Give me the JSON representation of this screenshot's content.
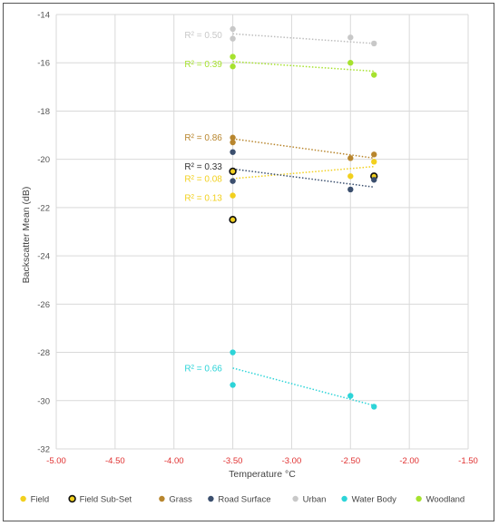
{
  "chart_data": {
    "type": "scatter",
    "title": "",
    "xlabel": "Temperature °C",
    "ylabel": "Backscatter Mean (dB)",
    "xlim": [
      -5.0,
      -1.5
    ],
    "ylim": [
      -32,
      -14
    ],
    "x_ticks": [
      -5.0,
      -4.5,
      -4.0,
      -3.5,
      -3.0,
      -2.5,
      -2.0,
      -1.5
    ],
    "x_tick_labels": [
      "-5.00",
      "-4.50",
      "-4.00",
      "-3.50",
      "-3.00",
      "-2.50",
      "-2.00",
      "-1.50"
    ],
    "y_ticks": [
      -32,
      -30,
      -28,
      -26,
      -24,
      -22,
      -20,
      -18,
      -16,
      -14
    ],
    "y_tick_labels": [
      "-32",
      "-30",
      "-28",
      "-26",
      "-24",
      "-22",
      "-20",
      "-18",
      "-16",
      "-14"
    ],
    "grid": true,
    "legend_position": "bottom",
    "x_tick_color": "#e03030",
    "series": [
      {
        "name": "Field",
        "color": "#f2d01e",
        "marker": "filled",
        "x": [
          -3.5,
          -2.5,
          -2.3
        ],
        "y": [
          -21.5,
          -20.7,
          -20.1
        ],
        "trendline": {
          "from": [
            -3.5,
            -20.8
          ],
          "to": [
            -2.3,
            -20.3
          ]
        },
        "r2_label": "R² = 0.08",
        "r2_anchor": [
          -3.75,
          -20.8
        ]
      },
      {
        "name": "Field Sub-Set",
        "color": "#f2d01e",
        "edge_color": "#111111",
        "marker": "ring",
        "x": [
          -3.5,
          -3.5,
          -2.3
        ],
        "y": [
          -22.5,
          -20.5,
          -20.7
        ],
        "trendline": null,
        "r2_label": "R² = 0.13",
        "r2_anchor": [
          -3.75,
          -21.6
        ]
      },
      {
        "name": "Grass",
        "color": "#b8862e",
        "marker": "filled",
        "x": [
          -3.5,
          -3.5,
          -2.5,
          -2.3
        ],
        "y": [
          -19.1,
          -19.3,
          -19.95,
          -19.8
        ],
        "trendline": {
          "from": [
            -3.5,
            -19.15
          ],
          "to": [
            -2.3,
            -19.95
          ]
        },
        "r2_label": "R² = 0.86",
        "r2_anchor": [
          -3.75,
          -19.1
        ]
      },
      {
        "name": "Road Surface",
        "color": "#3b4f6e",
        "marker": "filled",
        "x": [
          -3.5,
          -3.5,
          -2.5,
          -2.3
        ],
        "y": [
          -19.7,
          -20.9,
          -21.25,
          -20.85
        ],
        "trendline": {
          "from": [
            -3.5,
            -20.4
          ],
          "to": [
            -2.3,
            -21.15
          ]
        },
        "r2_label": "R² = 0.33",
        "r2_anchor": [
          -3.75,
          -20.3
        ]
      },
      {
        "name": "Urban",
        "color": "#c8c8c8",
        "marker": "filled",
        "x": [
          -3.5,
          -3.5,
          -2.5,
          -2.3
        ],
        "y": [
          -14.6,
          -15.0,
          -14.95,
          -15.2
        ],
        "trendline": {
          "from": [
            -3.5,
            -14.8
          ],
          "to": [
            -2.3,
            -15.2
          ]
        },
        "r2_label": "R² = 0.50",
        "r2_anchor": [
          -3.75,
          -14.85
        ]
      },
      {
        "name": "Water Body",
        "color": "#2dd4d8",
        "marker": "filled",
        "x": [
          -3.5,
          -3.5,
          -2.5,
          -2.3
        ],
        "y": [
          -28.0,
          -29.35,
          -29.8,
          -30.25
        ],
        "trendline": {
          "from": [
            -3.5,
            -28.65
          ],
          "to": [
            -2.3,
            -30.2
          ]
        },
        "r2_label": "R² = 0.66",
        "r2_anchor": [
          -3.75,
          -28.65
        ]
      },
      {
        "name": "Woodland",
        "color": "#a6e22e",
        "marker": "filled",
        "x": [
          -3.5,
          -3.5,
          -2.5,
          -2.3
        ],
        "y": [
          -15.75,
          -16.15,
          -16.0,
          -16.5
        ],
        "trendline": {
          "from": [
            -3.5,
            -15.95
          ],
          "to": [
            -2.3,
            -16.35
          ]
        },
        "r2_label": "R² = 0.39",
        "r2_anchor": [
          -3.75,
          -16.05
        ]
      }
    ]
  }
}
